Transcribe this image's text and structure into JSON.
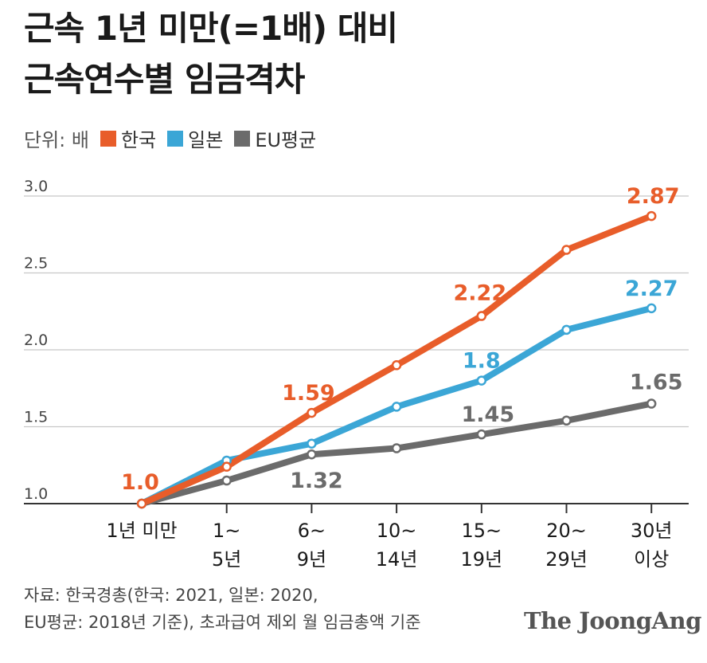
{
  "header": {
    "title_line1": "근속 1년 미만(=1배) 대비",
    "title_line2": "근속연수별 임금격차"
  },
  "legend": {
    "unit": "단위: 배",
    "items": [
      {
        "label": "한국",
        "color": "#e85d2a"
      },
      {
        "label": "일본",
        "color": "#3ba6d6"
      },
      {
        "label": "EU평균",
        "color": "#6b6b6b"
      }
    ]
  },
  "chart_data": {
    "type": "line",
    "title": "근속 1년 미만(=1배) 대비 근속연수별 임금격차",
    "xlabel": "",
    "ylabel": "",
    "unit": "배",
    "ylim": [
      1.0,
      3.0
    ],
    "yticks": [
      "1.0",
      "1.5",
      "2.0",
      "2.5",
      "3.0"
    ],
    "categories": [
      [
        "1년 미만"
      ],
      [
        "1~",
        "5년"
      ],
      [
        "6~",
        "9년"
      ],
      [
        "10~",
        "14년"
      ],
      [
        "15~",
        "19년"
      ],
      [
        "20~",
        "29년"
      ],
      [
        "30년",
        "이상"
      ]
    ],
    "series": [
      {
        "name": "EU평균",
        "color": "#6b6b6b",
        "values": [
          1.0,
          1.15,
          1.32,
          1.36,
          1.45,
          1.54,
          1.65
        ]
      },
      {
        "name": "일본",
        "color": "#3ba6d6",
        "values": [
          1.0,
          1.28,
          1.39,
          1.63,
          1.8,
          2.13,
          2.27
        ]
      },
      {
        "name": "한국",
        "color": "#e85d2a",
        "values": [
          1.0,
          1.24,
          1.59,
          1.9,
          2.22,
          2.65,
          2.87
        ]
      }
    ],
    "annotations": [
      {
        "series": "한국",
        "index": 0,
        "text": "1.0"
      },
      {
        "series": "한국",
        "index": 2,
        "text": "1.59"
      },
      {
        "series": "한국",
        "index": 4,
        "text": "2.22"
      },
      {
        "series": "한국",
        "index": 6,
        "text": "2.87"
      },
      {
        "series": "일본",
        "index": 4,
        "text": "1.8"
      },
      {
        "series": "일본",
        "index": 6,
        "text": "2.27"
      },
      {
        "series": "EU평균",
        "index": 2,
        "text": "1.32"
      },
      {
        "series": "EU평균",
        "index": 4,
        "text": "1.45"
      },
      {
        "series": "EU평균",
        "index": 6,
        "text": "1.65"
      }
    ]
  },
  "footer": {
    "source_line1": "자료: 한국경총(한국: 2021, 일본: 2020,",
    "source_line2": "EU평균: 2018년 기준), 초과급여 제외 월 임금총액 기준",
    "brand": "The JoongAng"
  }
}
